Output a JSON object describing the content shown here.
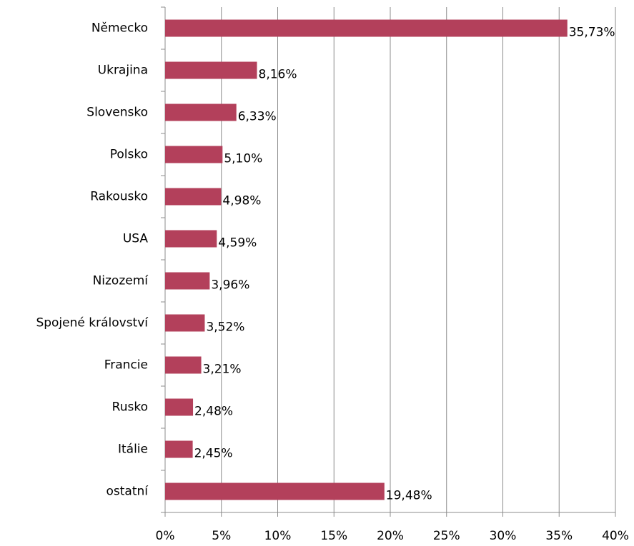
{
  "chart_data": {
    "type": "bar",
    "orientation": "horizontal",
    "categories": [
      "Německo",
      "Ukrajina",
      "Slovensko",
      "Polsko",
      "Rakousko",
      "USA",
      "Nizozemí",
      "Spojené království",
      "Francie",
      "Rusko",
      "Itálie",
      "ostatní"
    ],
    "values": [
      35.73,
      8.16,
      6.33,
      5.1,
      4.98,
      4.59,
      3.96,
      3.52,
      3.21,
      2.48,
      2.45,
      19.48
    ],
    "value_labels": [
      "35,73%",
      "8,16%",
      "6,33%",
      "5,10%",
      "4,98%",
      "4,59%",
      "3,96%",
      "3,52%",
      "3,21%",
      "2,48%",
      "2,45%",
      "19,48%"
    ],
    "color": "#b3405b",
    "xlim": [
      0,
      40
    ],
    "xticks": [
      {
        "value": 0,
        "label": "0%"
      },
      {
        "value": 5,
        "label": "5%"
      },
      {
        "value": 10,
        "label": "10%"
      },
      {
        "value": 15,
        "label": "15%"
      },
      {
        "value": 20,
        "label": "20%"
      },
      {
        "value": 25,
        "label": "25%"
      },
      {
        "value": 30,
        "label": "30%"
      },
      {
        "value": 35,
        "label": "35%"
      },
      {
        "value": 40,
        "label": "40%"
      }
    ],
    "grid": true
  }
}
